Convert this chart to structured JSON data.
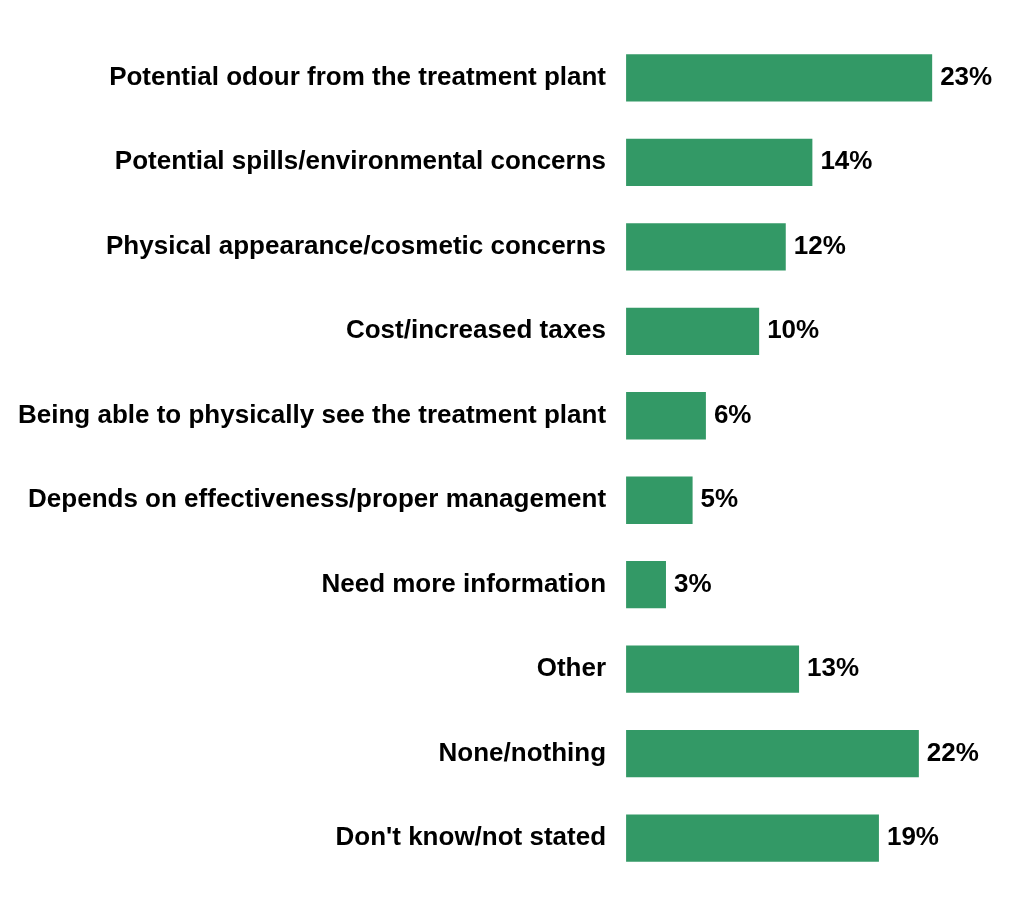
{
  "chart_data": {
    "type": "bar",
    "orientation": "horizontal",
    "categories": [
      "Potential odour from the treatment plant",
      "Potential spills/environmental concerns",
      "Physical appearance/cosmetic concerns",
      "Cost/increased taxes",
      "Being able to physically see the treatment plant",
      "Depends on effectiveness/proper management",
      "Need more information",
      "Other",
      "None/nothing",
      "Don't know/not stated"
    ],
    "values": [
      23,
      14,
      12,
      10,
      6,
      5,
      3,
      13,
      22,
      19
    ],
    "value_labels": [
      "23%",
      "14%",
      "12%",
      "10%",
      "6%",
      "5%",
      "3%",
      "13%",
      "22%",
      "19%"
    ],
    "color": "#339966",
    "legend": false,
    "tick_labels": "y"
  }
}
